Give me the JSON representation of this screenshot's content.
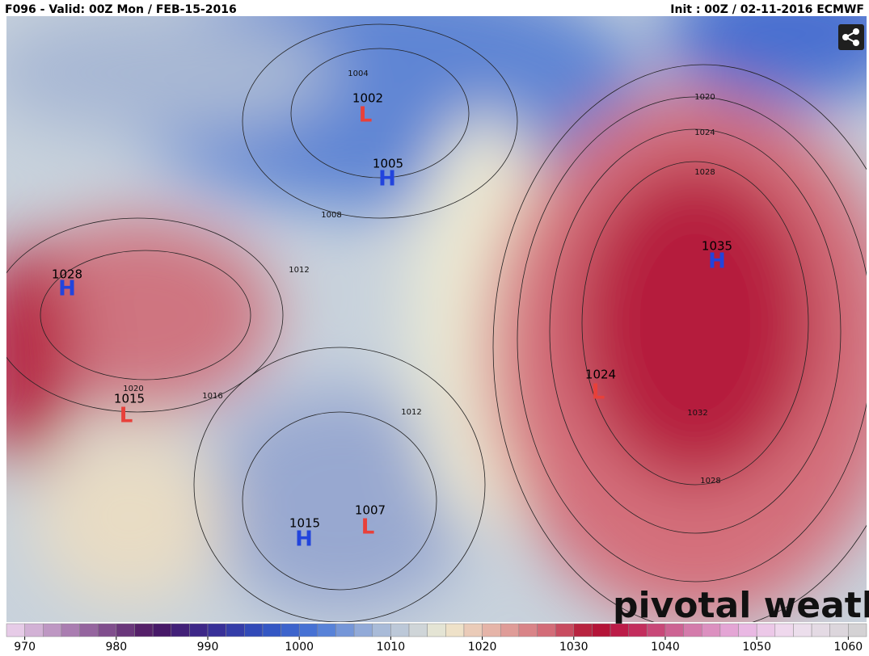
{
  "header": {
    "left": "F096 - Valid: 00Z Mon / FEB-15-2016",
    "right": "Init : 00Z / 02-11-2016 ECMWF"
  },
  "systems": [
    {
      "letter": "L",
      "value": 1002
    },
    {
      "letter": "H",
      "value": 1005
    },
    {
      "letter": "H",
      "value": 1028
    },
    {
      "letter": "L",
      "value": 1015
    },
    {
      "letter": "H",
      "value": 1035
    },
    {
      "letter": "L",
      "value": 1024
    },
    {
      "letter": "H",
      "value": 1015
    },
    {
      "letter": "L",
      "value": 1007
    }
  ],
  "isobar_labels": [
    1004,
    1008,
    1012,
    1016,
    1020,
    1012,
    1020,
    1024,
    1028,
    1032,
    1028
  ],
  "watermark": "pivotal weather",
  "colorbar": {
    "range": [
      968,
      1062
    ],
    "ticks": [
      970,
      980,
      990,
      1000,
      1010,
      1020,
      1030,
      1040,
      1050,
      1060
    ]
  }
}
